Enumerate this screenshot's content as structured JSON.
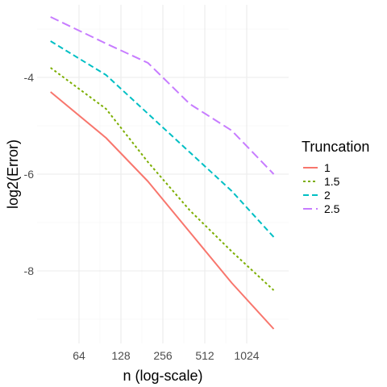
{
  "chart_data": {
    "type": "line",
    "xlabel": "n (log-scale)",
    "ylabel": "log2(Error)",
    "x_scale": "log2",
    "x_ticks": [
      64,
      128,
      256,
      512,
      1024
    ],
    "x_tick_labels": [
      "64",
      "128",
      "256",
      "512",
      "1024"
    ],
    "xlim": [
      32,
      2048
    ],
    "y_ticks": [
      -8,
      -6,
      -4
    ],
    "y_tick_labels": [
      "-8",
      "-6",
      "-4"
    ],
    "ylim": [
      -9.5,
      -2.5
    ],
    "grid": true,
    "legend": {
      "title": "Truncation",
      "position": "right"
    },
    "x": [
      40,
      100,
      200,
      400,
      800,
      1600
    ],
    "series": [
      {
        "name": "1",
        "color": "#F8766D",
        "dash": "solid",
        "values": [
          -4.3,
          -5.25,
          -6.15,
          -7.2,
          -8.25,
          -9.2
        ]
      },
      {
        "name": "1.5",
        "color": "#7CAE00",
        "dash": "dotted",
        "values": [
          -3.8,
          -4.65,
          -5.75,
          -6.75,
          -7.6,
          -8.4
        ]
      },
      {
        "name": "2",
        "color": "#00BFC4",
        "dash": "dashed",
        "values": [
          -3.25,
          -3.95,
          -4.75,
          -5.55,
          -6.35,
          -7.3
        ]
      },
      {
        "name": "2.5",
        "color": "#C77CFF",
        "dash": "longdash",
        "values": [
          -2.75,
          -3.3,
          -3.7,
          -4.55,
          -5.1,
          -6.0
        ]
      }
    ]
  }
}
